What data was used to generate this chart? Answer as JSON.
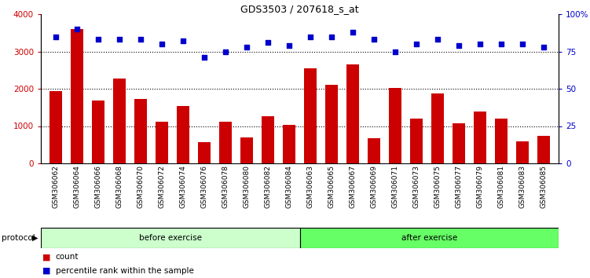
{
  "title": "GDS3503 / 207618_s_at",
  "categories": [
    "GSM306062",
    "GSM306064",
    "GSM306066",
    "GSM306068",
    "GSM306070",
    "GSM306072",
    "GSM306074",
    "GSM306076",
    "GSM306078",
    "GSM306080",
    "GSM306082",
    "GSM306084",
    "GSM306063",
    "GSM306065",
    "GSM306067",
    "GSM306069",
    "GSM306071",
    "GSM306073",
    "GSM306075",
    "GSM306077",
    "GSM306079",
    "GSM306081",
    "GSM306083",
    "GSM306085"
  ],
  "bar_values": [
    1930,
    3600,
    1680,
    2270,
    1730,
    1120,
    1530,
    560,
    1110,
    700,
    1270,
    1040,
    2550,
    2110,
    2650,
    680,
    2020,
    1200,
    1870,
    1080,
    1390,
    1190,
    600,
    730
  ],
  "dot_values": [
    85,
    90,
    83,
    83,
    83,
    80,
    82,
    71,
    75,
    78,
    81,
    79,
    85,
    85,
    88,
    83,
    75,
    80,
    83,
    79,
    80,
    80,
    80,
    78
  ],
  "bar_color": "#cc0000",
  "dot_color": "#0000cc",
  "left_ylim": [
    0,
    4000
  ],
  "right_ylim": [
    0,
    100
  ],
  "left_yticks": [
    0,
    1000,
    2000,
    3000,
    4000
  ],
  "right_yticks": [
    0,
    25,
    50,
    75,
    100
  ],
  "right_yticklabels": [
    "0",
    "25",
    "50",
    "75",
    "100%"
  ],
  "grid_values": [
    1000,
    2000,
    3000
  ],
  "before_exercise_count": 12,
  "after_exercise_count": 12,
  "protocol_label": "protocol",
  "before_label": "before exercise",
  "after_label": "after exercise",
  "before_color": "#ccffcc",
  "after_color": "#66ff66",
  "legend_count_label": "count",
  "legend_pct_label": "percentile rank within the sample",
  "bg_color": "#ffffff",
  "xtick_bg_color": "#cccccc",
  "separator_color": "#000000"
}
